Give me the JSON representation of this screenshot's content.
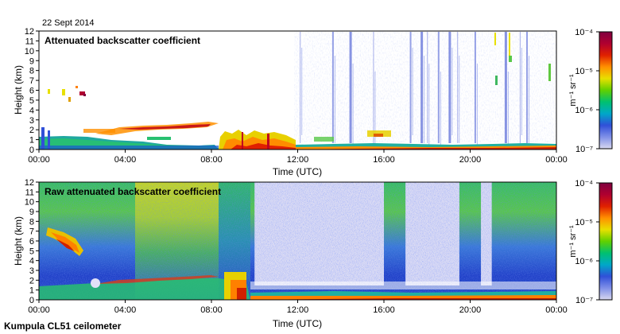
{
  "date": "22 Sept 2014",
  "footer": "Kumpula CL51 ceilometer",
  "colorbar_gradient": [
    "#d8d8f0",
    "#8090e8",
    "#3050d8",
    "#00a8c8",
    "#00c070",
    "#60d000",
    "#e8e000",
    "#ff9000",
    "#e02000",
    "#b00030",
    "#800040"
  ],
  "chart_data": [
    {
      "type": "heatmap",
      "title": "Attenuated backscatter coefficient",
      "xlabel": "Time (UTC)",
      "ylabel": "Height (km)",
      "x_ticks": [
        "00:00",
        "04:00",
        "08:00",
        "12:00",
        "16:00",
        "20:00",
        "00:00"
      ],
      "y_ticks": [
        "0",
        "1",
        "2",
        "3",
        "4",
        "5",
        "6",
        "7",
        "8",
        "9",
        "10",
        "11",
        "12"
      ],
      "xlim_hours": [
        0,
        24
      ],
      "ylim_km": [
        0,
        12
      ],
      "colorbar": {
        "label": "m⁻¹ sr⁻¹",
        "scale": "log",
        "ticks": [
          "10⁻⁷",
          "10⁻⁶",
          "10⁻⁵",
          "10⁻⁴"
        ],
        "range": [
          1e-07,
          0.0001
        ]
      },
      "features": {
        "boundary_layer": [
          [
            0,
            1.0
          ],
          [
            2,
            1.0
          ],
          [
            4,
            1.2
          ],
          [
            6,
            0.7
          ],
          [
            8,
            0.6
          ],
          [
            10,
            1.5
          ],
          [
            12,
            0.4
          ],
          [
            16,
            0.6
          ],
          [
            20,
            0.5
          ],
          [
            24,
            0.7
          ]
        ],
        "cloud_layer": [
          [
            2.5,
            1.9
          ],
          [
            4,
            2.0
          ],
          [
            5,
            2.2
          ],
          [
            6.5,
            2.3
          ],
          [
            7.5,
            2.5
          ],
          [
            8.5,
            2.4
          ]
        ],
        "high_echo_columns_hours": [
          12.1,
          13.6,
          14.4,
          15.5,
          17.2,
          17.7,
          18.0,
          18.5,
          19.0,
          19.4,
          20.2,
          21.6,
          22.3,
          22.6
        ]
      }
    },
    {
      "type": "heatmap",
      "title": "Raw attenuated backscatter coefficient",
      "xlabel": "Time (UTC)",
      "ylabel": "Height (km)",
      "x_ticks": [
        "00:00",
        "04:00",
        "08:00",
        "12:00",
        "16:00",
        "20:00",
        "00:00"
      ],
      "y_ticks": [
        "0",
        "1",
        "2",
        "3",
        "4",
        "5",
        "6",
        "7",
        "8",
        "9",
        "10",
        "11",
        "12"
      ],
      "xlim_hours": [
        0,
        24
      ],
      "ylim_km": [
        0,
        12
      ],
      "colorbar": {
        "label": "m⁻¹ sr⁻¹",
        "scale": "log",
        "ticks": [
          "10⁻⁷",
          "10⁻⁶",
          "10⁻⁵",
          "10⁻⁴"
        ],
        "range": [
          1e-07,
          0.0001
        ]
      },
      "features": {
        "noisy_green_region_hours": [
          [
            0,
            10
          ],
          [
            16,
            17
          ],
          [
            19.5,
            20.5
          ],
          [
            21,
            21.5
          ],
          [
            22.5,
            24
          ]
        ],
        "low_noise_region_hours": [
          [
            10,
            16
          ],
          [
            17,
            19.5
          ],
          [
            20.5,
            21
          ]
        ],
        "elevated_aerosol_layer_km": [
          [
            0.5,
            6.5
          ],
          [
            1.5,
            4.5
          ]
        ]
      }
    }
  ]
}
